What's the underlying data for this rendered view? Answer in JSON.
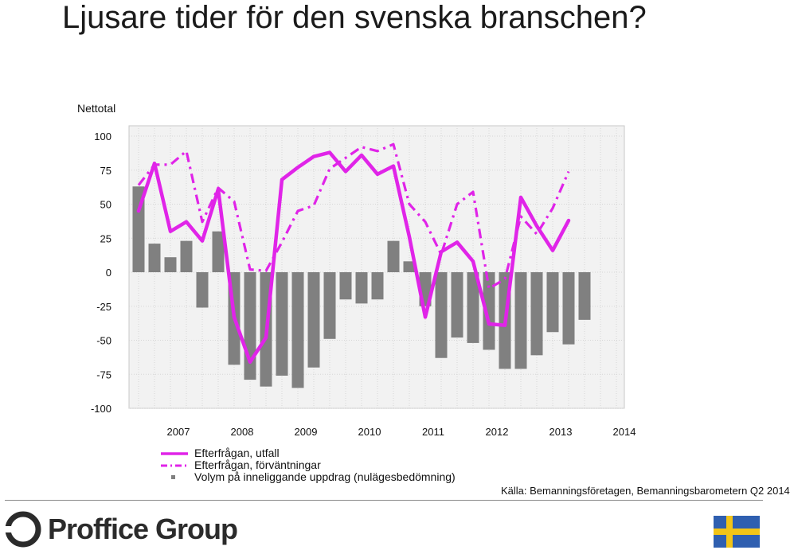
{
  "page": {
    "title": "Ljusare tider för den svenska branschen?",
    "source": "Källa: Bemanningsföretagen, Bemanningsbarometern Q2 2014",
    "logo_text": "Proffice Group"
  },
  "colors": {
    "line_actual": "#e024e8",
    "line_expect": "#e024e8",
    "bars": "#808080",
    "plot_bg": "#f2f2f2",
    "grid": "#d6d6d6",
    "flag_blue": "#2f5fb0",
    "flag_yellow": "#f2c417"
  },
  "chart_data": {
    "type": "bar+line",
    "ylabel": "Nettotal",
    "ylim": [
      -100,
      100
    ],
    "yticks": [
      100,
      75,
      50,
      25,
      0,
      -25,
      -50,
      -75,
      -100
    ],
    "grid": true,
    "legend_position": "bottom-left",
    "x_tick_labels": [
      "2007",
      "2008",
      "2009",
      "2010",
      "2011",
      "2012",
      "2013",
      "2014"
    ],
    "quarters": [
      "2006Q4",
      "2007Q1",
      "2007Q2",
      "2007Q3",
      "2007Q4",
      "2008Q1",
      "2008Q2",
      "2008Q3",
      "2008Q4",
      "2009Q1",
      "2009Q2",
      "2009Q3",
      "2009Q4",
      "2010Q1",
      "2010Q2",
      "2010Q3",
      "2010Q4",
      "2011Q1",
      "2011Q2",
      "2011Q3",
      "2011Q4",
      "2012Q1",
      "2012Q2",
      "2012Q3",
      "2012Q4",
      "2013Q1",
      "2013Q2",
      "2013Q3",
      "2013Q4",
      "2014Q1",
      "2014Q2"
    ],
    "series": [
      {
        "name": "Efterfrågan, utfall",
        "kind": "line",
        "values": [
          45,
          80,
          30,
          37,
          23,
          61,
          -33,
          -66,
          -48,
          68,
          77,
          85,
          88,
          74,
          86,
          72,
          78,
          26,
          -33,
          15,
          22,
          8,
          -38,
          -39,
          55,
          34,
          16,
          38,
          null,
          null,
          null
        ]
      },
      {
        "name": "Efterfrågan, förväntningar",
        "kind": "dashdot",
        "values": [
          64,
          79,
          79,
          89,
          37,
          62,
          52,
          2,
          1,
          22,
          45,
          49,
          76,
          84,
          92,
          89,
          94,
          50,
          37,
          13,
          50,
          59,
          -12,
          -5,
          41,
          28,
          47,
          74,
          null,
          null,
          null
        ]
      },
      {
        "name": "Volym på inneliggande uppdrag (nulägesbedömning)",
        "kind": "bar",
        "values": [
          63,
          21,
          11,
          23,
          -26,
          30,
          -68,
          -79,
          -84,
          -76,
          -85,
          -70,
          -49,
          -20,
          -23,
          -20,
          23,
          8,
          -25,
          -63,
          -48,
          -52,
          -57,
          -71,
          -71,
          -61,
          -44,
          -53,
          -35,
          null,
          null
        ]
      }
    ]
  }
}
